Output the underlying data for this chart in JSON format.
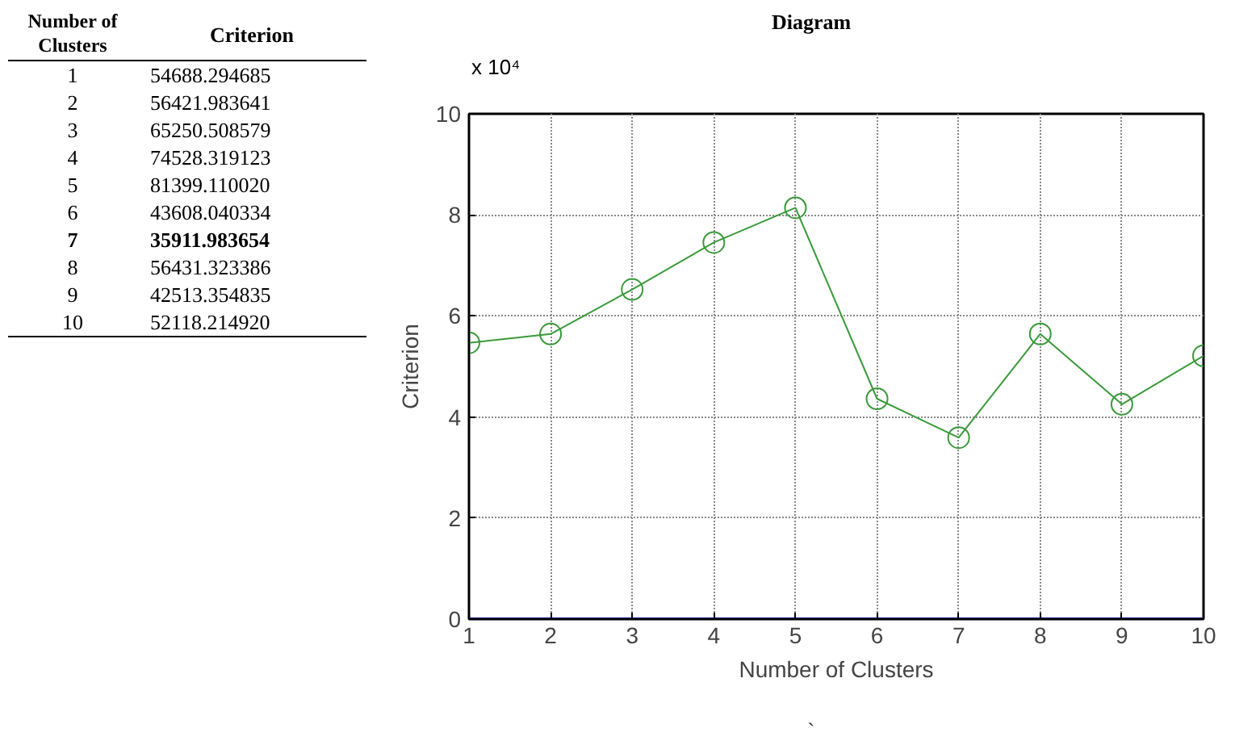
{
  "chart_data": {
    "type": "line",
    "title": "Diagram",
    "xlabel": "Number of Clusters",
    "ylabel": "Criterion",
    "annotations": [
      "x 10⁴",
      "`",
      "54688.294685",
      "56421.983641",
      "65250.508579",
      "74528.319123",
      "81399.110020",
      "43608.040334",
      "35911.983654",
      "56431.323386",
      "42513.354835",
      "52118.214920"
    ],
    "categories": [
      "1",
      "2",
      "3",
      "4",
      "5",
      "6",
      "7",
      "8",
      "9",
      "10"
    ],
    "series": [
      {
        "color": "#3a9a3a",
        "values": [
          5.4688294685,
          5.6421983641,
          6.5250508579,
          7.4528319123,
          8.139911002,
          4.3608040334,
          3.5911983654,
          5.6431323386,
          4.2513354835,
          5.211821492
        ]
      },
      {
        "color": "#00007f",
        "values": [
          0,
          0,
          0,
          0,
          0,
          0,
          0,
          0,
          0,
          0
        ],
        "marker": "none"
      }
    ],
    "ylim": [
      0,
      10
    ],
    "yticks": [
      0,
      2,
      4,
      6,
      8,
      10
    ],
    "grid": true,
    "marker": "circle",
    "line_style": "solid"
  }
}
